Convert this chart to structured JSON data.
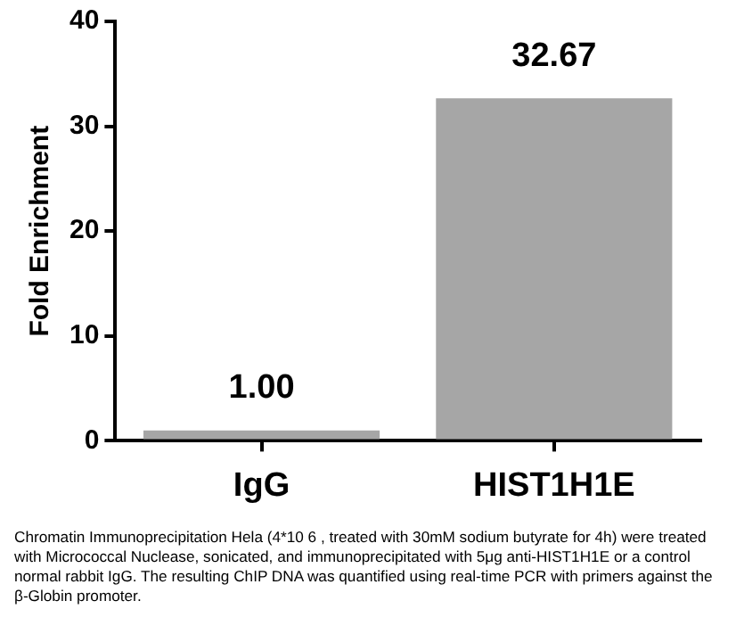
{
  "chart_data": {
    "type": "bar",
    "ylabel": "Fold Enrichment",
    "categories": [
      "IgG",
      "HIST1H1E"
    ],
    "values": [
      1,
      32.67
    ],
    "value_labels": [
      "1.00",
      "32.67"
    ],
    "color": "#a6a6a6",
    "ylim": [
      0,
      40
    ],
    "yticks": [
      0,
      10,
      20,
      30,
      40
    ],
    "grid": false,
    "legend": false,
    "annotations": [
      "Chromatin Immunoprecipitation Hela (4*10 6 , treated with 30mM sodium butyrate for 4h) were treated with Micrococcal Nuclease, sonicated, and immunoprecipitated with 5μg anti-HIST1H1E or a control normal rabbit IgG. The resulting ChIP DNA was quantified using real-time PCR with primers against the β-Globin promoter."
    ]
  }
}
